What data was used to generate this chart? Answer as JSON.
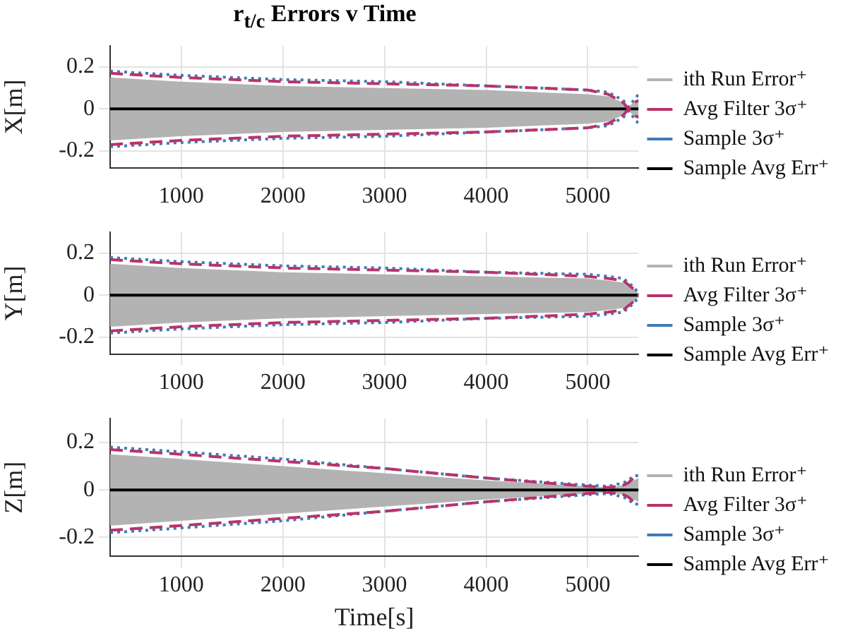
{
  "chart_data": [
    {
      "type": "line",
      "title": "r$_{t/c}$ Errors v Time",
      "ylabel": "X[m]",
      "xlim": [
        300,
        5500
      ],
      "xticks": [
        1000,
        2000,
        3000,
        4000,
        5000
      ],
      "ylim": [
        -0.28,
        0.3
      ],
      "yticks": [
        -0.2,
        0,
        0.2
      ],
      "grid": true,
      "legend": "right",
      "marker": "none",
      "x": [
        300,
        1000,
        2000,
        3000,
        4000,
        5000,
        5200,
        5350,
        5400,
        5450,
        5500
      ],
      "series": [
        {
          "name": "ith Run Error⁺",
          "color": "#b3b3b3",
          "values": [
            null,
            null,
            null,
            null,
            null,
            null,
            null,
            null,
            null,
            null,
            null
          ],
          "lower": [
            -0.15,
            -0.13,
            -0.11,
            -0.1,
            -0.09,
            -0.07,
            -0.06,
            -0.03,
            -0.01,
            -0.03,
            -0.05
          ],
          "upper": [
            0.15,
            0.13,
            0.11,
            0.1,
            0.09,
            0.07,
            0.06,
            0.03,
            0.01,
            0.03,
            0.05
          ]
        },
        {
          "name": "Avg Filter 3σ⁺",
          "color": "#b8336a",
          "line_style": "dashed",
          "values": [
            0.17,
            0.15,
            0.13,
            0.12,
            0.11,
            0.09,
            0.07,
            0.03,
            0,
            0.03,
            0.04
          ]
        },
        {
          "color": "#b8336a",
          "line_style": "dashed",
          "values": [
            -0.17,
            -0.15,
            -0.13,
            -0.12,
            -0.11,
            -0.09,
            -0.07,
            -0.03,
            0,
            -0.03,
            -0.04
          ]
        },
        {
          "name": "Sample 3σ⁺",
          "color": "#3f7cb5",
          "line_style": "dotted",
          "values": [
            0.18,
            0.16,
            0.14,
            0.13,
            0.11,
            0.09,
            0.08,
            0.04,
            0.01,
            0.04,
            0.07
          ]
        },
        {
          "color": "#3f7cb5",
          "line_style": "dotted",
          "values": [
            -0.18,
            -0.16,
            -0.14,
            -0.13,
            -0.11,
            -0.09,
            -0.08,
            -0.04,
            -0.01,
            -0.04,
            -0.07
          ]
        },
        {
          "name": "Sample Avg Err⁺",
          "color": "#000000",
          "line_style": "solid",
          "values": [
            0,
            0,
            0,
            0,
            0,
            0,
            0,
            0,
            0,
            0,
            0
          ]
        }
      ]
    },
    {
      "type": "line",
      "ylabel": "Y[m]",
      "xlim": [
        300,
        5500
      ],
      "xticks": [
        1000,
        2000,
        3000,
        4000,
        5000
      ],
      "ylim": [
        -0.28,
        0.3
      ],
      "yticks": [
        -0.2,
        0,
        0.2
      ],
      "grid": true,
      "legend": "right",
      "marker": "none",
      "x": [
        300,
        1000,
        2000,
        3000,
        4000,
        5000,
        5200,
        5350,
        5400,
        5450,
        5500
      ],
      "series": [
        {
          "name": "ith Run Error⁺",
          "color": "#b3b3b3",
          "values": [
            null,
            null,
            null,
            null,
            null,
            null,
            null,
            null,
            null,
            null,
            null
          ],
          "lower": [
            -0.15,
            -0.13,
            -0.11,
            -0.1,
            -0.09,
            -0.08,
            -0.07,
            -0.06,
            -0.05,
            -0.03,
            -0.01
          ],
          "upper": [
            0.15,
            0.13,
            0.11,
            0.1,
            0.09,
            0.08,
            0.07,
            0.06,
            0.05,
            0.03,
            0.01
          ]
        },
        {
          "name": "Avg Filter 3σ⁺",
          "color": "#b8336a",
          "line_style": "dashed",
          "values": [
            0.17,
            0.15,
            0.13,
            0.12,
            0.11,
            0.09,
            0.08,
            0.07,
            0.05,
            0.03,
            0
          ]
        },
        {
          "color": "#b8336a",
          "line_style": "dashed",
          "values": [
            -0.17,
            -0.15,
            -0.13,
            -0.12,
            -0.11,
            -0.09,
            -0.08,
            -0.07,
            -0.05,
            -0.03,
            0
          ]
        },
        {
          "name": "Sample 3σ⁺",
          "color": "#3f7cb5",
          "line_style": "dotted",
          "values": [
            0.18,
            0.16,
            0.14,
            0.13,
            0.11,
            0.1,
            0.09,
            0.08,
            0.06,
            0.04,
            0.01
          ]
        },
        {
          "color": "#3f7cb5",
          "line_style": "dotted",
          "values": [
            -0.18,
            -0.16,
            -0.14,
            -0.13,
            -0.11,
            -0.1,
            -0.09,
            -0.08,
            -0.06,
            -0.04,
            -0.01
          ]
        },
        {
          "name": "Sample Avg Err⁺",
          "color": "#000000",
          "line_style": "solid",
          "values": [
            0,
            0,
            0,
            0,
            0,
            0,
            0,
            0,
            0,
            0,
            0
          ]
        }
      ]
    },
    {
      "type": "line",
      "ylabel": "Z[m]",
      "xlabel": "Time[s]",
      "xlim": [
        300,
        5500
      ],
      "xticks": [
        1000,
        2000,
        3000,
        4000,
        5000
      ],
      "ylim": [
        -0.28,
        0.3
      ],
      "yticks": [
        -0.2,
        0,
        0.2
      ],
      "grid": true,
      "legend": "right",
      "marker": "none",
      "x": [
        300,
        1000,
        2000,
        3000,
        4000,
        5000,
        5200,
        5350,
        5400,
        5450,
        5500
      ],
      "series": [
        {
          "name": "ith Run Error⁺",
          "color": "#b3b3b3",
          "values": [
            null,
            null,
            null,
            null,
            null,
            null,
            null,
            null,
            null,
            null,
            null
          ],
          "lower": [
            -0.15,
            -0.13,
            -0.1,
            -0.07,
            -0.04,
            -0.015,
            -0.01,
            -0.02,
            -0.03,
            -0.04,
            -0.05
          ],
          "upper": [
            0.15,
            0.13,
            0.1,
            0.07,
            0.04,
            0.015,
            0.01,
            0.02,
            0.03,
            0.04,
            0.05
          ]
        },
        {
          "name": "Avg Filter 3σ⁺",
          "color": "#b8336a",
          "line_style": "dashed",
          "values": [
            0.17,
            0.15,
            0.12,
            0.09,
            0.05,
            0.015,
            0.01,
            0.02,
            0.03,
            0.05,
            0.05
          ]
        },
        {
          "color": "#b8336a",
          "line_style": "dashed",
          "values": [
            -0.17,
            -0.15,
            -0.12,
            -0.09,
            -0.05,
            -0.015,
            -0.01,
            -0.02,
            -0.03,
            -0.05,
            -0.05
          ]
        },
        {
          "name": "Sample 3σ⁺",
          "color": "#3f7cb5",
          "line_style": "dotted",
          "values": [
            0.18,
            0.16,
            0.13,
            0.09,
            0.05,
            0.02,
            0.015,
            0.03,
            0.04,
            0.06,
            0.06
          ]
        },
        {
          "color": "#3f7cb5",
          "line_style": "dotted",
          "values": [
            -0.18,
            -0.16,
            -0.13,
            -0.09,
            -0.05,
            -0.02,
            -0.015,
            -0.03,
            -0.04,
            -0.06,
            -0.06
          ]
        },
        {
          "name": "Sample Avg Err⁺",
          "color": "#000000",
          "line_style": "solid",
          "values": [
            0,
            0,
            0,
            0,
            0,
            0,
            0,
            0,
            0,
            0,
            0
          ]
        }
      ]
    }
  ]
}
